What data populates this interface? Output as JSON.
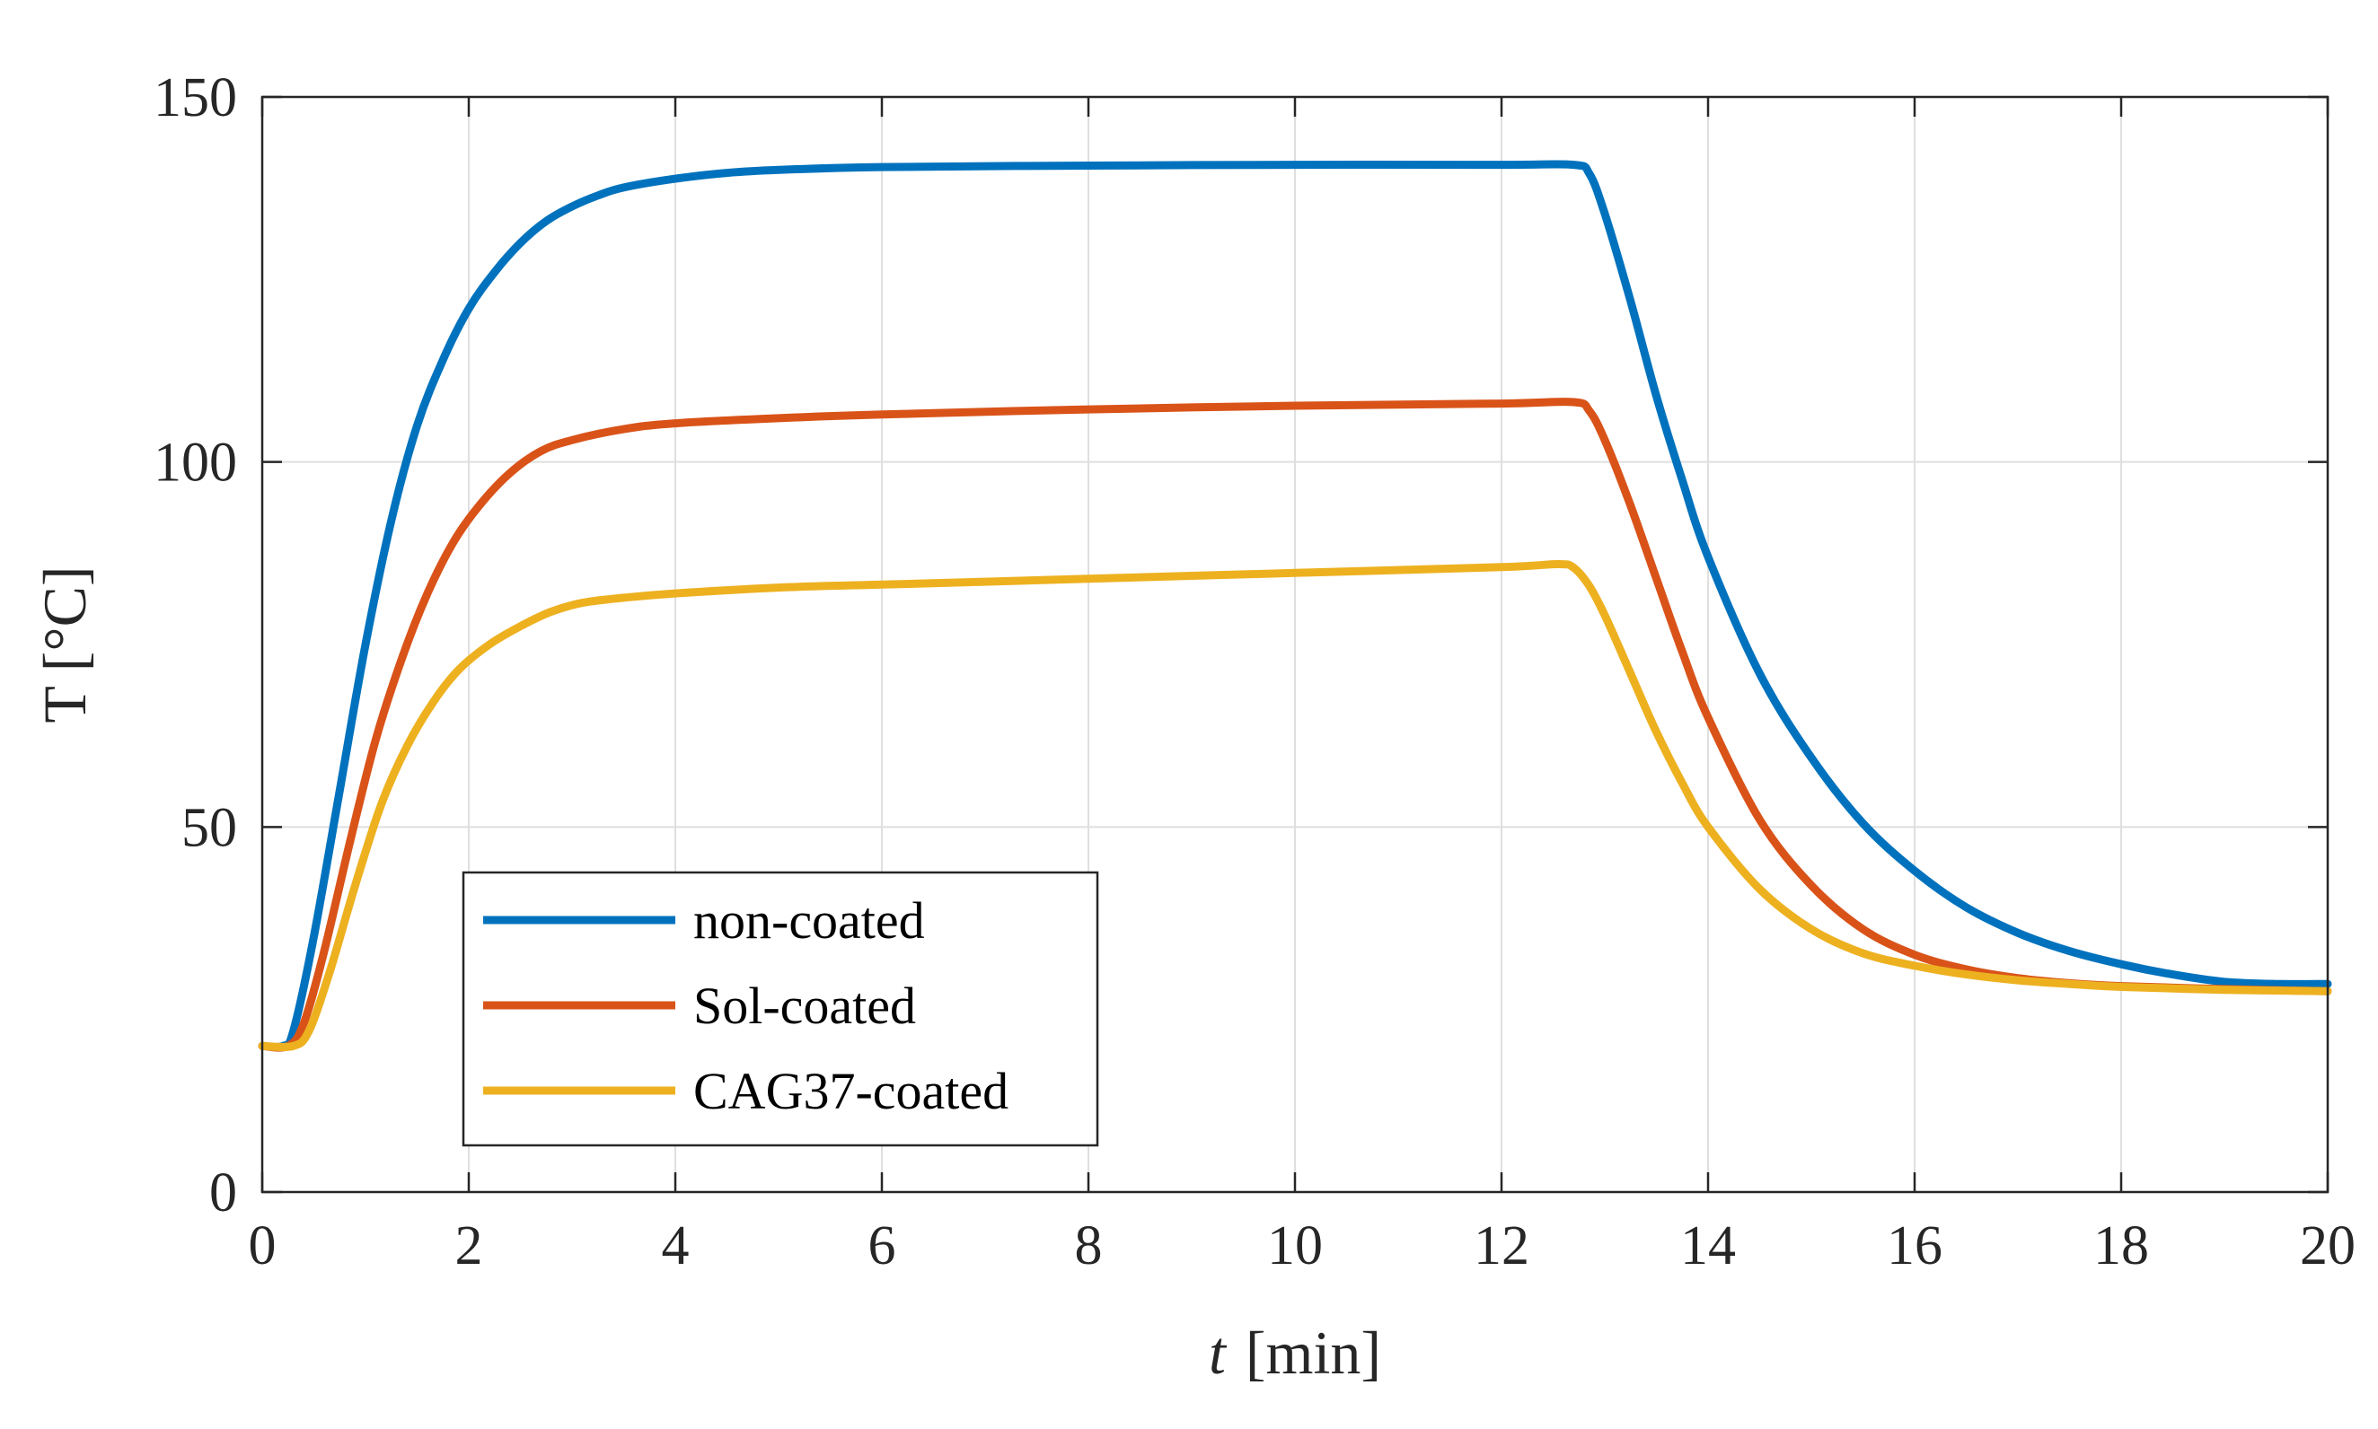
{
  "chart_data": {
    "type": "line",
    "title": "",
    "xlabel": "t",
    "xlabel_unit": "[min]",
    "ylabel": "T [°C]",
    "xlim": [
      0,
      20
    ],
    "ylim": [
      0,
      150
    ],
    "xticks": [
      0,
      2,
      4,
      6,
      8,
      10,
      12,
      14,
      16,
      18,
      20
    ],
    "yticks": [
      0,
      50,
      100,
      150
    ],
    "grid": true,
    "legend_position": "bottom-left",
    "series": [
      {
        "name": "non-coated",
        "color": "#0072BD",
        "points": [
          [
            0,
            20
          ],
          [
            0.2,
            20
          ],
          [
            0.3,
            22
          ],
          [
            0.5,
            35
          ],
          [
            0.75,
            55
          ],
          [
            1.0,
            75
          ],
          [
            1.25,
            92
          ],
          [
            1.5,
            105
          ],
          [
            1.75,
            114
          ],
          [
            2.0,
            121
          ],
          [
            2.25,
            126
          ],
          [
            2.5,
            130
          ],
          [
            2.75,
            133
          ],
          [
            3.0,
            135
          ],
          [
            3.25,
            136.5
          ],
          [
            3.5,
            137.6
          ],
          [
            4.0,
            138.8
          ],
          [
            4.5,
            139.6
          ],
          [
            5.0,
            140
          ],
          [
            6.0,
            140.4
          ],
          [
            8.0,
            140.6
          ],
          [
            10.0,
            140.7
          ],
          [
            12.0,
            140.7
          ],
          [
            12.7,
            140.7
          ],
          [
            12.85,
            139.5
          ],
          [
            13.0,
            134
          ],
          [
            13.25,
            122
          ],
          [
            13.5,
            109
          ],
          [
            13.75,
            97.5
          ],
          [
            14.0,
            87
          ],
          [
            14.5,
            71
          ],
          [
            15.0,
            59.5
          ],
          [
            15.5,
            50.5
          ],
          [
            16.0,
            44
          ],
          [
            16.5,
            39
          ],
          [
            17.0,
            35.5
          ],
          [
            17.5,
            33
          ],
          [
            18.0,
            31.2
          ],
          [
            18.5,
            29.8
          ],
          [
            19.0,
            28.8
          ],
          [
            19.5,
            28.5
          ],
          [
            20.0,
            28.5
          ]
        ]
      },
      {
        "name": "Sol-coated",
        "color": "#D95319",
        "points": [
          [
            0,
            20
          ],
          [
            0.25,
            20
          ],
          [
            0.4,
            23
          ],
          [
            0.6,
            33
          ],
          [
            0.85,
            48
          ],
          [
            1.1,
            62
          ],
          [
            1.35,
            73
          ],
          [
            1.6,
            82
          ],
          [
            1.85,
            89
          ],
          [
            2.1,
            94
          ],
          [
            2.4,
            98.5
          ],
          [
            2.7,
            101.5
          ],
          [
            3.0,
            103
          ],
          [
            3.5,
            104.5
          ],
          [
            4.0,
            105.3
          ],
          [
            5.0,
            106
          ],
          [
            6.0,
            106.5
          ],
          [
            8.0,
            107.2
          ],
          [
            10.0,
            107.7
          ],
          [
            12.0,
            108
          ],
          [
            12.7,
            108.2
          ],
          [
            12.85,
            107
          ],
          [
            13.0,
            103
          ],
          [
            13.25,
            94
          ],
          [
            13.5,
            84
          ],
          [
            13.75,
            74
          ],
          [
            14.0,
            65
          ],
          [
            14.5,
            51
          ],
          [
            15.0,
            42
          ],
          [
            15.5,
            36
          ],
          [
            16.0,
            32.5
          ],
          [
            16.5,
            30.5
          ],
          [
            17.0,
            29.3
          ],
          [
            17.5,
            28.6
          ],
          [
            18.0,
            28.2
          ],
          [
            19.0,
            27.8
          ],
          [
            20.0,
            27.5
          ]
        ]
      },
      {
        "name": "CAG37-coated",
        "color": "#EDB120",
        "points": [
          [
            0,
            20
          ],
          [
            0.3,
            20
          ],
          [
            0.45,
            22
          ],
          [
            0.65,
            30
          ],
          [
            0.9,
            42
          ],
          [
            1.15,
            53
          ],
          [
            1.4,
            61
          ],
          [
            1.65,
            67
          ],
          [
            1.9,
            71.5
          ],
          [
            2.2,
            75
          ],
          [
            2.5,
            77.5
          ],
          [
            2.8,
            79.5
          ],
          [
            3.1,
            80.7
          ],
          [
            3.5,
            81.4
          ],
          [
            4.0,
            82
          ],
          [
            5.0,
            82.8
          ],
          [
            6.0,
            83.2
          ],
          [
            8.0,
            84
          ],
          [
            10.0,
            84.8
          ],
          [
            12.0,
            85.6
          ],
          [
            12.55,
            86
          ],
          [
            12.7,
            85.5
          ],
          [
            12.85,
            83
          ],
          [
            13.0,
            79
          ],
          [
            13.25,
            71
          ],
          [
            13.5,
            63
          ],
          [
            13.75,
            56
          ],
          [
            14.0,
            50
          ],
          [
            14.5,
            41.5
          ],
          [
            15.0,
            36
          ],
          [
            15.5,
            32.7
          ],
          [
            16.0,
            31
          ],
          [
            16.5,
            29.8
          ],
          [
            17.0,
            29
          ],
          [
            17.5,
            28.5
          ],
          [
            18.0,
            28.1
          ],
          [
            19.0,
            27.7
          ],
          [
            20.0,
            27.5
          ]
        ]
      }
    ]
  }
}
